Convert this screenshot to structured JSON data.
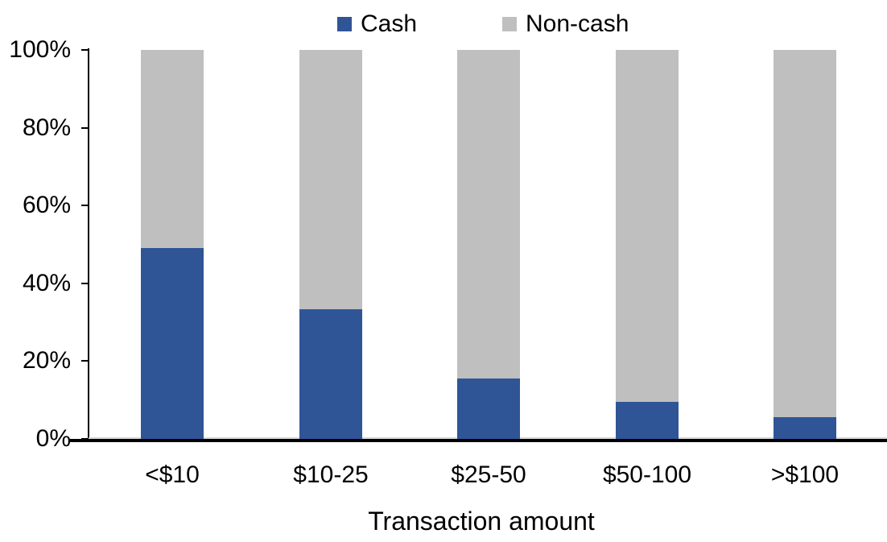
{
  "chart_data": {
    "type": "bar",
    "stacked": true,
    "title": "",
    "xlabel": "Transaction amount",
    "ylabel": "",
    "categories": [
      "<$10",
      "$10-25",
      "$25-50",
      "$50-100",
      ">$100"
    ],
    "series": [
      {
        "name": "Cash",
        "color": "#2F5597",
        "values": [
          49,
          33.3,
          15.5,
          9.5,
          5.5
        ]
      },
      {
        "name": "Non-cash",
        "color": "#BFBFBF",
        "values": [
          51,
          66.7,
          84.5,
          90.5,
          94.5
        ]
      }
    ],
    "y_ticks": [
      "0%",
      "20%",
      "40%",
      "60%",
      "80%",
      "100%"
    ],
    "ylim": [
      0,
      100
    ],
    "legend_position": "top-center",
    "grid": false
  },
  "colors": {
    "cash": "#2F5597",
    "noncash": "#BFBFBF",
    "axis": "#000000",
    "plot_border": "#D6D6D6",
    "text": "#000000",
    "background": "#FFFFFF"
  }
}
